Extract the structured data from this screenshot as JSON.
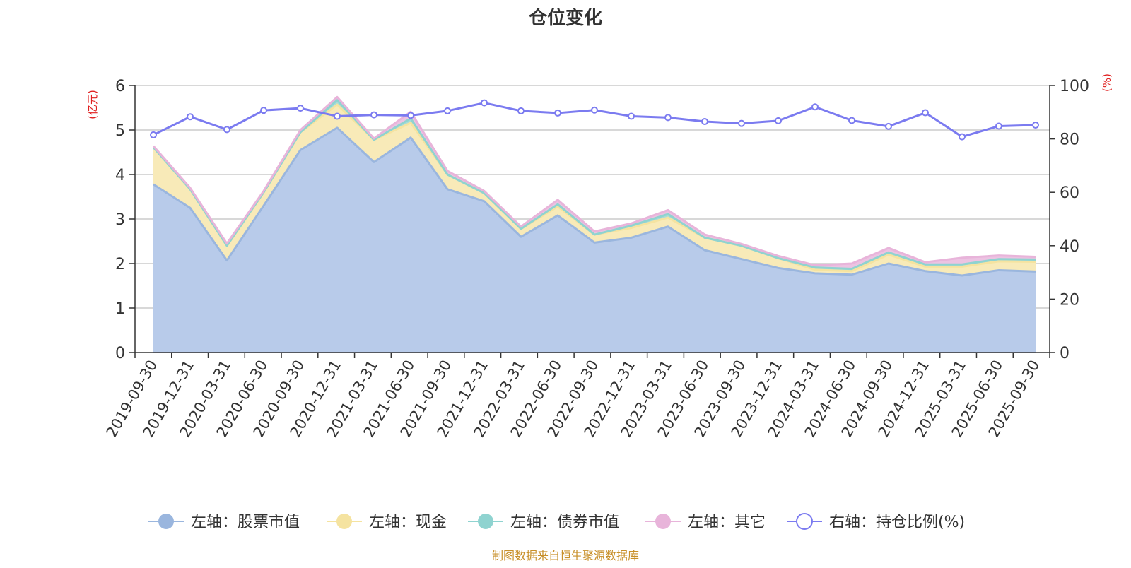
{
  "chart_data": {
    "type": "area",
    "stacked": true,
    "title": "仓位变化",
    "left_axis_label": "(亿元)",
    "right_axis_label": "(%)",
    "left_ylim": [
      0,
      6
    ],
    "left_ticks": [
      "0",
      "1",
      "2",
      "3",
      "4",
      "5",
      "6"
    ],
    "right_ylim": [
      0,
      100
    ],
    "right_ticks": [
      "0",
      "20",
      "40",
      "60",
      "80",
      "100"
    ],
    "grid": true,
    "legend_position": "bottom",
    "categories": [
      "2019-09-30",
      "2019-12-31",
      "2020-03-31",
      "2020-06-30",
      "2020-09-30",
      "2020-12-31",
      "2021-03-31",
      "2021-06-30",
      "2021-09-30",
      "2021-12-31",
      "2022-03-31",
      "2022-06-30",
      "2022-09-30",
      "2022-12-31",
      "2023-03-31",
      "2023-06-30",
      "2023-09-30",
      "2023-12-31",
      "2024-03-31",
      "2024-06-30",
      "2024-09-30",
      "2024-12-31",
      "2025-03-31",
      "2025-06-30",
      "2025-09-30"
    ],
    "series": [
      {
        "name": "左轴：股票市值",
        "axis": "left",
        "kind": "area",
        "color": "#9ab6de",
        "fill": "#b8cbea",
        "values": [
          3.78,
          3.25,
          2.07,
          3.3,
          4.55,
          5.05,
          4.28,
          4.83,
          3.67,
          3.4,
          2.6,
          3.08,
          2.47,
          2.58,
          2.83,
          2.3,
          2.1,
          1.9,
          1.78,
          1.75,
          2.0,
          1.83,
          1.73,
          1.85,
          1.82
        ]
      },
      {
        "name": "左轴：现金",
        "axis": "left",
        "kind": "area",
        "color": "#f5e3a0",
        "fill": "#f8eab8",
        "values": [
          0.83,
          0.42,
          0.33,
          0.3,
          0.4,
          0.52,
          0.5,
          0.33,
          0.33,
          0.18,
          0.18,
          0.2,
          0.18,
          0.22,
          0.2,
          0.28,
          0.3,
          0.22,
          0.08,
          0.08,
          0.2,
          0.1,
          0.2,
          0.2,
          0.22
        ]
      },
      {
        "name": "左轴：债券市值",
        "axis": "left",
        "kind": "area",
        "color": "#8fd3d0",
        "fill": "#a8dcd8",
        "values": [
          0.0,
          0.0,
          0.0,
          0.0,
          0.0,
          0.1,
          0.0,
          0.1,
          0.0,
          0.0,
          0.0,
          0.05,
          0.0,
          0.05,
          0.08,
          0.0,
          0.0,
          0.0,
          0.05,
          0.05,
          0.05,
          0.05,
          0.05,
          0.05,
          0.05
        ]
      },
      {
        "name": "左轴：其它",
        "axis": "left",
        "kind": "area",
        "color": "#e8b4da",
        "fill": "#ecc3e2",
        "values": [
          0.03,
          0.03,
          0.05,
          0.03,
          0.05,
          0.07,
          0.03,
          0.15,
          0.08,
          0.05,
          0.05,
          0.1,
          0.07,
          0.05,
          0.09,
          0.07,
          0.04,
          0.05,
          0.05,
          0.12,
          0.1,
          0.05,
          0.15,
          0.08,
          0.06
        ]
      },
      {
        "name": "右轴：持仓比例(%)",
        "axis": "right",
        "kind": "line",
        "color": "#7b7bf0",
        "values": [
          81.5,
          88.3,
          83.5,
          90.7,
          91.5,
          88.5,
          89.0,
          88.8,
          90.5,
          93.5,
          90.5,
          89.7,
          90.8,
          88.5,
          88.0,
          86.5,
          85.8,
          86.8,
          92.0,
          86.9,
          84.7,
          89.8,
          80.8,
          84.8,
          85.2
        ]
      }
    ],
    "source_note": "制图数据来自恒生聚源数据库"
  }
}
